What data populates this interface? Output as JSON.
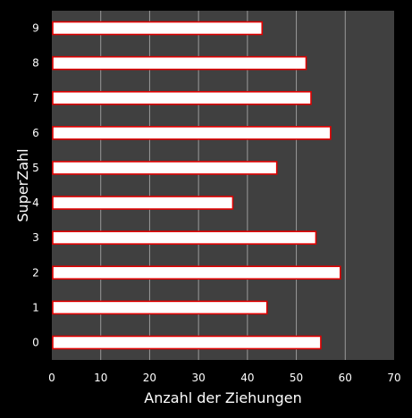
{
  "chart_data": {
    "type": "bar",
    "orientation": "horizontal",
    "categories": [
      "0",
      "1",
      "2",
      "3",
      "4",
      "5",
      "6",
      "7",
      "8",
      "9"
    ],
    "values": [
      55,
      44,
      59,
      54,
      37,
      46,
      57,
      53,
      52,
      43
    ],
    "xlabel": "Anzahl der Ziehungen",
    "ylabel": "SuperZahl",
    "xlim": [
      0,
      70
    ],
    "xticks": [
      "0",
      "10",
      "20",
      "30",
      "40",
      "50",
      "60",
      "70"
    ],
    "grid": "vertical",
    "legend": "none"
  },
  "colors": {
    "page_background": "#000000",
    "plot_background": "#404040",
    "gridline": "#9a9a9a",
    "bar_fill": "#ffffff",
    "bar_edge": "#e00000",
    "text": "#ffffff"
  }
}
